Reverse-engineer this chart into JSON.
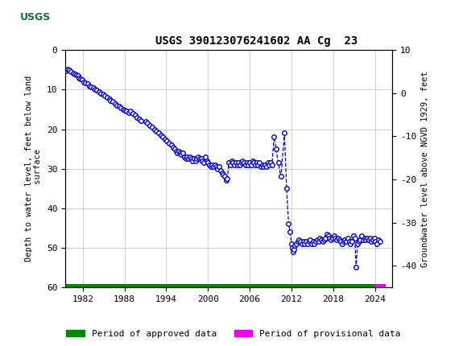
{
  "title": "USGS 390123076241602 AA Cg  23",
  "ylabel_left": "Depth to water level, feet below land\n surface",
  "ylabel_right": "Groundwater level above NGVD 1929, feet",
  "ylim_left": [
    60,
    0
  ],
  "ylim_right": [
    -45,
    10
  ],
  "xlim": [
    1979.5,
    2026.5
  ],
  "xticks": [
    1982,
    1988,
    1994,
    2000,
    2006,
    2012,
    2018,
    2024
  ],
  "yticks_left": [
    0,
    10,
    20,
    30,
    40,
    50,
    60
  ],
  "yticks_right": [
    10,
    0,
    -10,
    -20,
    -30,
    -40
  ],
  "header_color": "#1b6b3a",
  "data_color": "#0000cc",
  "approved_color": "#008800",
  "provisional_color": "#ee00ee",
  "background_color": "#ffffff",
  "data": [
    [
      1979.6,
      5.2
    ],
    [
      1979.8,
      4.8
    ],
    [
      1980.0,
      5.0
    ],
    [
      1980.3,
      5.5
    ],
    [
      1980.6,
      5.8
    ],
    [
      1980.9,
      6.0
    ],
    [
      1981.1,
      6.2
    ],
    [
      1981.3,
      6.5
    ],
    [
      1981.5,
      7.0
    ],
    [
      1981.7,
      7.2
    ],
    [
      1981.9,
      7.5
    ],
    [
      1982.1,
      8.0
    ],
    [
      1982.4,
      8.3
    ],
    [
      1982.7,
      8.5
    ],
    [
      1982.9,
      9.0
    ],
    [
      1983.2,
      9.3
    ],
    [
      1983.5,
      9.6
    ],
    [
      1983.8,
      10.0
    ],
    [
      1984.0,
      10.2
    ],
    [
      1984.3,
      10.5
    ],
    [
      1984.6,
      11.0
    ],
    [
      1984.9,
      11.2
    ],
    [
      1985.2,
      11.5
    ],
    [
      1985.5,
      12.0
    ],
    [
      1985.8,
      12.3
    ],
    [
      1986.0,
      12.8
    ],
    [
      1986.3,
      13.0
    ],
    [
      1986.6,
      13.5
    ],
    [
      1986.9,
      14.0
    ],
    [
      1987.2,
      14.2
    ],
    [
      1987.5,
      14.5
    ],
    [
      1987.8,
      15.0
    ],
    [
      1988.0,
      15.2
    ],
    [
      1988.3,
      15.5
    ],
    [
      1988.6,
      15.8
    ],
    [
      1988.9,
      15.5
    ],
    [
      1989.2,
      16.0
    ],
    [
      1989.5,
      16.5
    ],
    [
      1989.8,
      17.0
    ],
    [
      1990.1,
      17.5
    ],
    [
      1990.4,
      17.8
    ],
    [
      1991.0,
      18.0
    ],
    [
      1991.3,
      18.5
    ],
    [
      1991.6,
      19.0
    ],
    [
      1992.0,
      19.5
    ],
    [
      1992.3,
      20.0
    ],
    [
      1992.6,
      20.5
    ],
    [
      1992.9,
      21.0
    ],
    [
      1993.2,
      21.5
    ],
    [
      1993.5,
      22.0
    ],
    [
      1993.8,
      22.5
    ],
    [
      1994.1,
      23.0
    ],
    [
      1994.4,
      23.5
    ],
    [
      1994.7,
      24.0
    ],
    [
      1995.0,
      24.5
    ],
    [
      1995.2,
      25.0
    ],
    [
      1995.4,
      25.5
    ],
    [
      1995.6,
      26.0
    ],
    [
      1995.8,
      25.5
    ],
    [
      1996.0,
      26.0
    ],
    [
      1996.2,
      26.5
    ],
    [
      1996.4,
      26.0
    ],
    [
      1996.6,
      27.0
    ],
    [
      1996.8,
      27.5
    ],
    [
      1997.0,
      27.0
    ],
    [
      1997.2,
      27.5
    ],
    [
      1997.4,
      27.0
    ],
    [
      1997.6,
      27.5
    ],
    [
      1997.8,
      28.0
    ],
    [
      1998.0,
      27.5
    ],
    [
      1998.2,
      28.0
    ],
    [
      1998.4,
      27.5
    ],
    [
      1998.6,
      27.0
    ],
    [
      1998.8,
      27.5
    ],
    [
      1999.0,
      27.5
    ],
    [
      1999.2,
      28.0
    ],
    [
      1999.4,
      28.5
    ],
    [
      1999.6,
      27.0
    ],
    [
      1999.8,
      28.0
    ],
    [
      2000.0,
      28.5
    ],
    [
      2000.2,
      29.0
    ],
    [
      2000.4,
      29.5
    ],
    [
      2000.6,
      29.0
    ],
    [
      2000.8,
      29.5
    ],
    [
      2001.0,
      29.0
    ],
    [
      2001.2,
      29.5
    ],
    [
      2001.4,
      30.0
    ],
    [
      2001.6,
      29.5
    ],
    [
      2001.8,
      30.5
    ],
    [
      2002.0,
      31.0
    ],
    [
      2002.2,
      31.5
    ],
    [
      2002.4,
      32.0
    ],
    [
      2002.6,
      33.0
    ],
    [
      2002.8,
      32.5
    ],
    [
      2003.0,
      28.5
    ],
    [
      2003.2,
      29.0
    ],
    [
      2003.4,
      28.0
    ],
    [
      2003.6,
      28.5
    ],
    [
      2003.8,
      29.0
    ],
    [
      2004.0,
      28.5
    ],
    [
      2004.2,
      29.0
    ],
    [
      2004.4,
      28.5
    ],
    [
      2004.6,
      29.0
    ],
    [
      2004.8,
      28.5
    ],
    [
      2005.0,
      28.0
    ],
    [
      2005.2,
      28.5
    ],
    [
      2005.4,
      29.0
    ],
    [
      2005.6,
      28.5
    ],
    [
      2005.8,
      29.0
    ],
    [
      2006.0,
      28.5
    ],
    [
      2006.2,
      29.0
    ],
    [
      2006.4,
      28.0
    ],
    [
      2006.6,
      28.5
    ],
    [
      2006.8,
      29.0
    ],
    [
      2007.0,
      28.5
    ],
    [
      2007.2,
      29.0
    ],
    [
      2007.4,
      28.5
    ],
    [
      2007.6,
      29.5
    ],
    [
      2007.8,
      29.0
    ],
    [
      2008.0,
      29.5
    ],
    [
      2008.2,
      29.0
    ],
    [
      2008.4,
      29.5
    ],
    [
      2008.6,
      28.5
    ],
    [
      2008.8,
      29.0
    ],
    [
      2009.0,
      28.5
    ],
    [
      2009.2,
      29.0
    ],
    [
      2009.5,
      22.0
    ],
    [
      2009.8,
      25.0
    ],
    [
      2010.1,
      28.5
    ],
    [
      2010.5,
      32.0
    ],
    [
      2011.0,
      21.0
    ],
    [
      2011.3,
      35.0
    ],
    [
      2011.6,
      44.0
    ],
    [
      2011.8,
      46.0
    ],
    [
      2012.0,
      49.0
    ],
    [
      2012.1,
      50.0
    ],
    [
      2012.2,
      51.0
    ],
    [
      2012.3,
      50.5
    ],
    [
      2012.5,
      49.5
    ],
    [
      2012.7,
      49.0
    ],
    [
      2012.9,
      48.5
    ],
    [
      2013.1,
      48.0
    ],
    [
      2013.3,
      48.5
    ],
    [
      2013.5,
      49.0
    ],
    [
      2013.7,
      48.5
    ],
    [
      2013.9,
      49.0
    ],
    [
      2014.1,
      48.5
    ],
    [
      2014.3,
      49.0
    ],
    [
      2014.5,
      48.5
    ],
    [
      2014.7,
      48.0
    ],
    [
      2014.9,
      49.0
    ],
    [
      2015.1,
      48.5
    ],
    [
      2015.3,
      49.0
    ],
    [
      2015.5,
      48.5
    ],
    [
      2015.7,
      48.0
    ],
    [
      2015.9,
      48.5
    ],
    [
      2016.1,
      47.5
    ],
    [
      2016.3,
      48.0
    ],
    [
      2016.5,
      48.5
    ],
    [
      2016.7,
      48.0
    ],
    [
      2016.9,
      47.5
    ],
    [
      2017.1,
      46.5
    ],
    [
      2017.3,
      47.0
    ],
    [
      2017.5,
      47.5
    ],
    [
      2017.7,
      48.0
    ],
    [
      2017.9,
      47.5
    ],
    [
      2018.1,
      47.0
    ],
    [
      2018.3,
      47.5
    ],
    [
      2018.5,
      48.0
    ],
    [
      2018.7,
      47.5
    ],
    [
      2018.9,
      48.0
    ],
    [
      2019.1,
      48.5
    ],
    [
      2019.3,
      49.0
    ],
    [
      2019.5,
      48.5
    ],
    [
      2019.7,
      48.0
    ],
    [
      2019.9,
      48.5
    ],
    [
      2020.1,
      47.5
    ],
    [
      2020.3,
      48.5
    ],
    [
      2020.5,
      49.0
    ],
    [
      2020.7,
      48.5
    ],
    [
      2020.9,
      47.0
    ],
    [
      2021.1,
      47.5
    ],
    [
      2021.3,
      55.0
    ],
    [
      2021.5,
      49.0
    ],
    [
      2021.7,
      48.5
    ],
    [
      2021.9,
      48.0
    ],
    [
      2022.1,
      47.0
    ],
    [
      2022.3,
      48.0
    ],
    [
      2022.5,
      47.5
    ],
    [
      2022.7,
      48.0
    ],
    [
      2022.9,
      47.5
    ],
    [
      2023.1,
      48.0
    ],
    [
      2023.3,
      47.5
    ],
    [
      2023.5,
      48.5
    ],
    [
      2023.7,
      48.0
    ],
    [
      2023.9,
      47.5
    ],
    [
      2024.1,
      48.5
    ],
    [
      2024.3,
      49.0
    ],
    [
      2024.5,
      48.0
    ],
    [
      2024.7,
      48.5
    ]
  ],
  "approved_bar_start": 1979.6,
  "approved_bar_end": 2024.0,
  "provisional_bar_start": 2024.0,
  "provisional_bar_end": 2025.5
}
